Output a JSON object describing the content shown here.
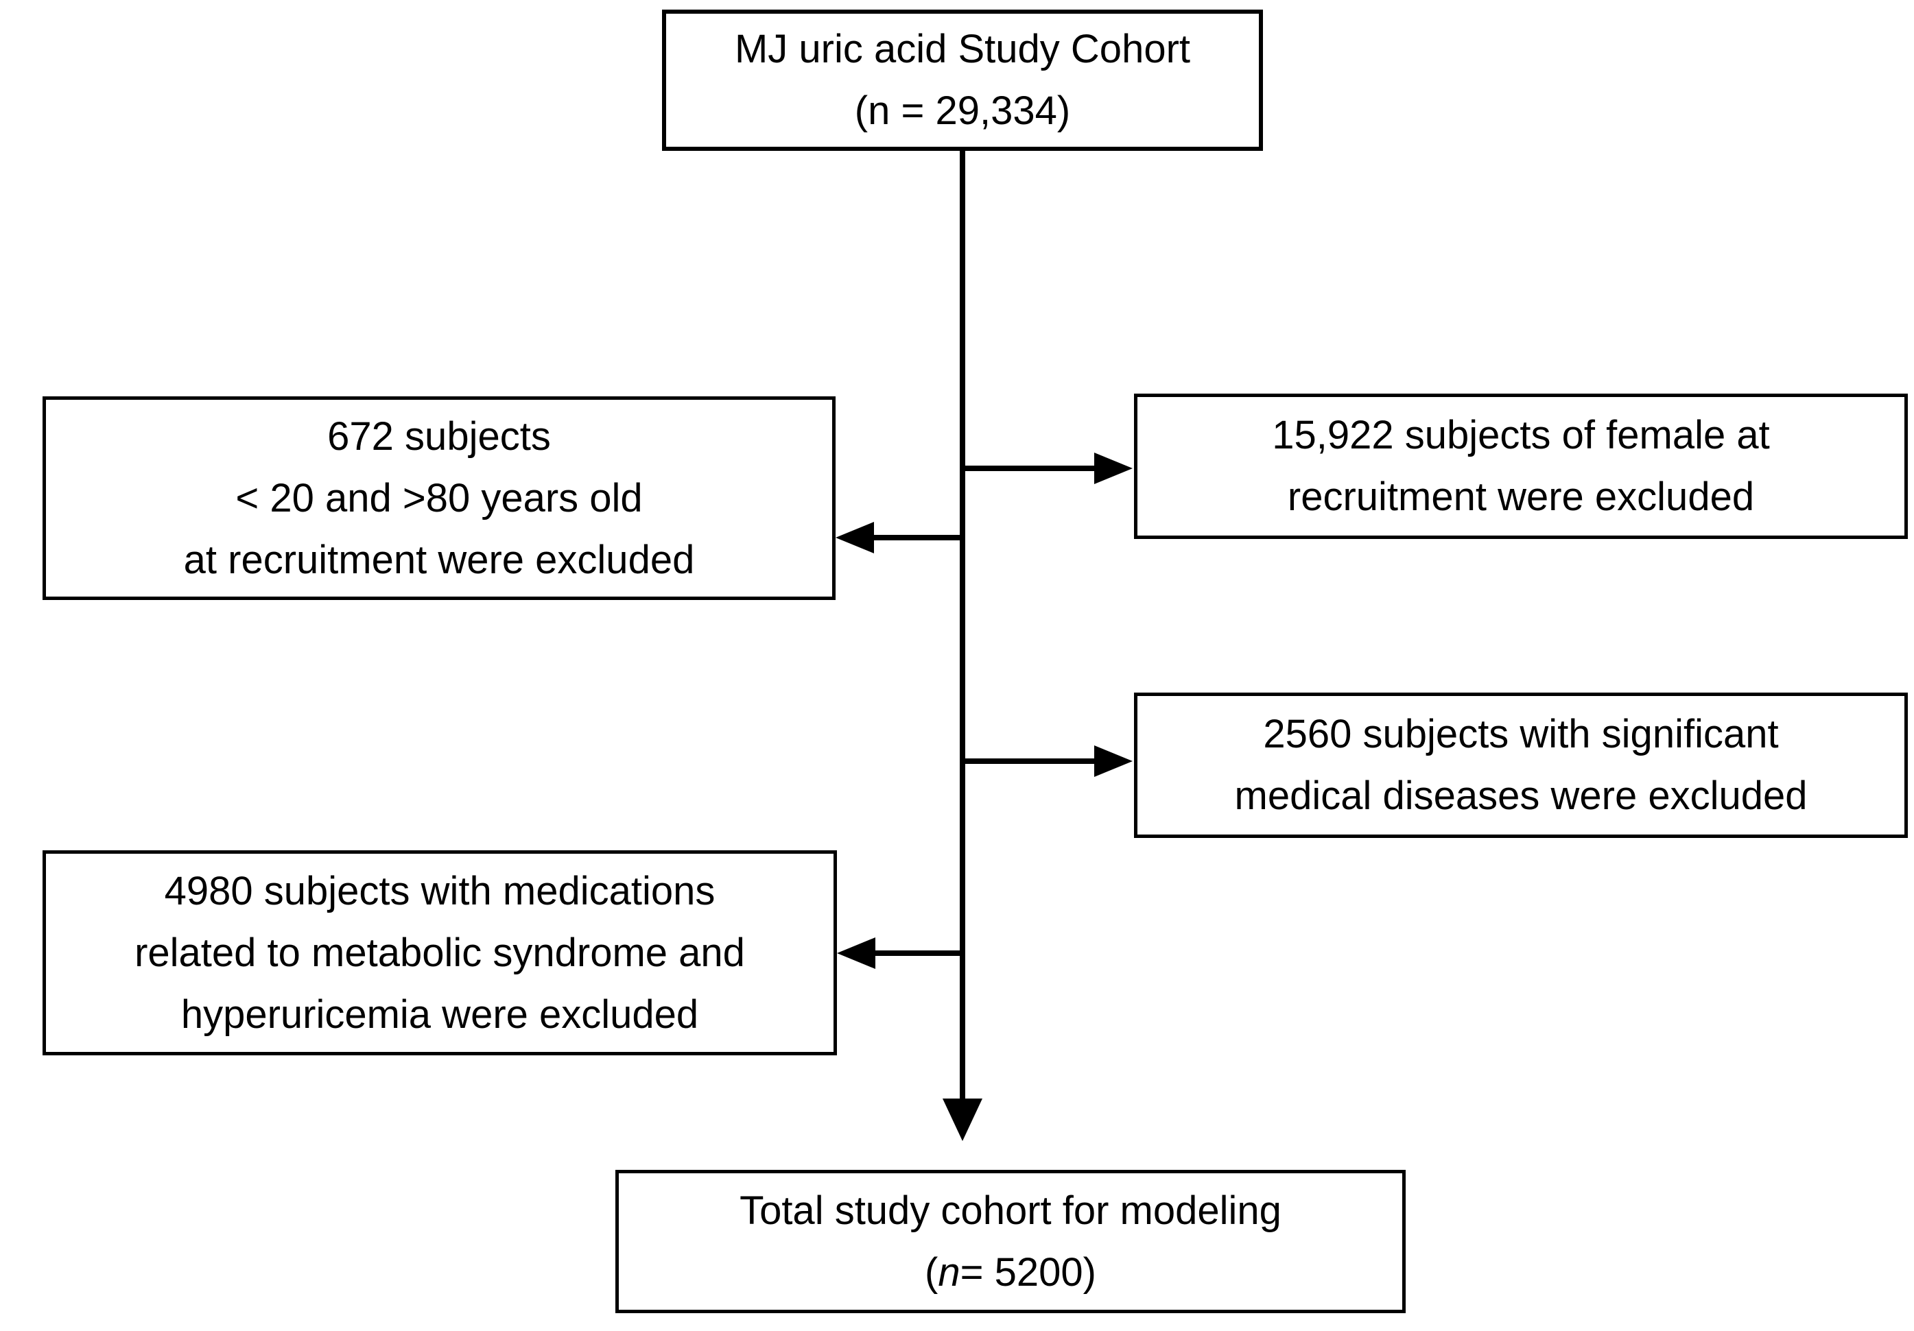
{
  "flowchart": {
    "cohort_box": {
      "line1": "MJ uric acid Study Cohort",
      "line2": "(n = 29,334)"
    },
    "age_exclusion_box": {
      "line1": "672 subjects",
      "line2": "< 20 and >80 years old",
      "line3": "at recruitment were excluded"
    },
    "female_exclusion_box": {
      "line1": "15,922 subjects of female at",
      "line2": "recruitment were excluded"
    },
    "medical_exclusion_box": {
      "line1": "2560 subjects with significant",
      "line2": "medical diseases were excluded"
    },
    "medication_exclusion_box": {
      "line1": "4980 subjects with medications",
      "line2": "related to metabolic syndrome and",
      "line3": "hyperuricemia were excluded"
    },
    "final_box": {
      "line1": "Total study cohort for modeling",
      "line2_open": "(",
      "line2_n": "n",
      "line2_rest": "= 5200)"
    },
    "colors": {
      "box_border": "#000000",
      "box_fill": "#ffffff",
      "text": "#000000",
      "arrow": "#000000",
      "background": "#ffffff"
    }
  }
}
